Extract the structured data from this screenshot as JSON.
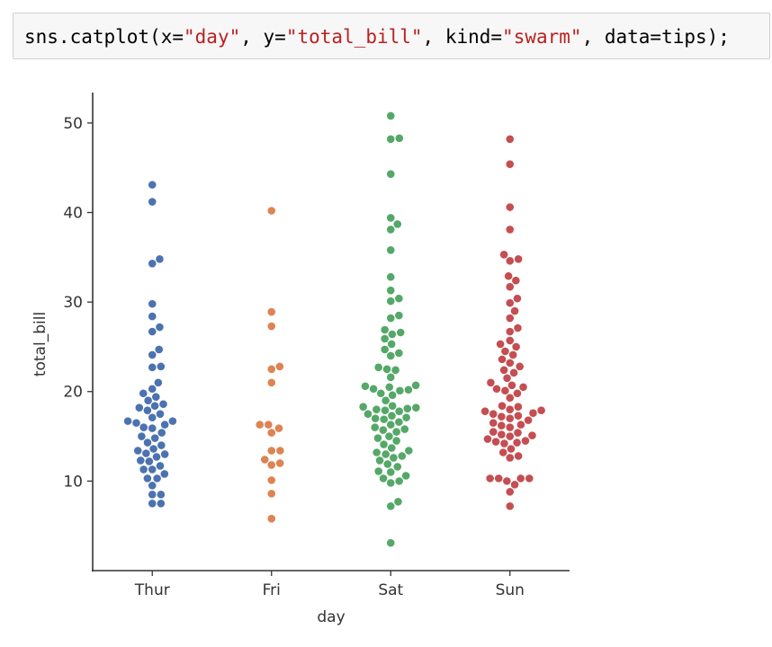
{
  "code_cell": {
    "tokens": [
      {
        "text": "sns.catplot(x=",
        "cls": ""
      },
      {
        "text": "\"day\"",
        "cls": "tok-str"
      },
      {
        "text": ", y=",
        "cls": ""
      },
      {
        "text": "\"total_bill\"",
        "cls": "tok-str"
      },
      {
        "text": ", kind=",
        "cls": ""
      },
      {
        "text": "\"swarm\"",
        "cls": "tok-str"
      },
      {
        "text": ", data=tips);",
        "cls": ""
      }
    ]
  },
  "chart_data": {
    "type": "scatter",
    "subtype": "swarm",
    "title": "",
    "xlabel": "day",
    "ylabel": "total_bill",
    "categories": [
      "Thur",
      "Fri",
      "Sat",
      "Sun"
    ],
    "ylim": [
      0,
      53.4
    ],
    "yticks": [
      10,
      20,
      30,
      40,
      50
    ],
    "grid": false,
    "legend": "none",
    "colors": [
      "#4c72b0",
      "#dd8452",
      "#55a868",
      "#c44e52"
    ],
    "series": [
      {
        "category": "Thur",
        "values": [
          7.5,
          7.5,
          8.5,
          8.5,
          9.5,
          10.3,
          10.3,
          10.8,
          11.3,
          11.3,
          11.7,
          12.2,
          12.3,
          12.7,
          13.0,
          13.1,
          13.4,
          13.6,
          14.0,
          14.3,
          14.8,
          15.0,
          15.4,
          15.9,
          16.0,
          16.3,
          16.5,
          16.7,
          16.7,
          17.1,
          17.5,
          17.9,
          18.2,
          18.4,
          18.6,
          19.0,
          19.4,
          19.8,
          20.3,
          21.0,
          22.7,
          22.8,
          24.1,
          24.7,
          26.7,
          27.2,
          28.4,
          29.8,
          34.3,
          34.8,
          41.2,
          43.1
        ]
      },
      {
        "category": "Fri",
        "values": [
          5.8,
          8.6,
          10.1,
          11.8,
          12.0,
          12.4,
          13.4,
          13.4,
          15.4,
          15.9,
          16.3,
          16.3,
          21.0,
          22.5,
          22.8,
          27.3,
          28.9,
          40.2
        ]
      },
      {
        "category": "Sat",
        "values": [
          3.1,
          7.2,
          7.7,
          9.8,
          10.0,
          10.3,
          10.6,
          11.0,
          11.1,
          11.6,
          11.9,
          12.3,
          12.6,
          12.8,
          13.0,
          13.2,
          13.4,
          13.7,
          14.1,
          14.5,
          14.8,
          15.0,
          15.5,
          15.7,
          15.8,
          16.0,
          16.3,
          16.6,
          16.9,
          17.0,
          17.1,
          17.3,
          17.5,
          17.8,
          17.9,
          18.0,
          18.1,
          18.2,
          18.3,
          18.4,
          19.0,
          19.6,
          19.8,
          20.1,
          20.2,
          20.3,
          20.5,
          20.6,
          20.7,
          21.6,
          22.4,
          22.5,
          22.7,
          24.0,
          24.3,
          24.7,
          25.3,
          25.9,
          26.4,
          26.6,
          26.9,
          28.2,
          28.5,
          30.1,
          30.4,
          31.3,
          32.8,
          35.8,
          38.1,
          38.7,
          39.4,
          44.3,
          48.2,
          48.3,
          50.8
        ]
      },
      {
        "category": "Sun",
        "values": [
          7.2,
          8.8,
          9.6,
          10.0,
          10.3,
          10.3,
          10.3,
          10.3,
          12.6,
          12.8,
          13.2,
          13.6,
          14.2,
          14.3,
          14.4,
          14.5,
          14.7,
          15.0,
          15.1,
          15.2,
          15.4,
          15.5,
          16.0,
          16.2,
          16.3,
          16.5,
          16.8,
          17.0,
          17.2,
          17.3,
          17.5,
          17.6,
          17.8,
          17.9,
          18.0,
          18.3,
          18.4,
          19.3,
          19.8,
          20.1,
          20.3,
          20.5,
          20.7,
          21.0,
          21.5,
          22.1,
          22.4,
          22.8,
          23.2,
          23.6,
          24.1,
          24.5,
          25.0,
          25.3,
          25.7,
          26.7,
          27.1,
          28.2,
          29.0,
          29.9,
          30.4,
          31.7,
          32.4,
          32.9,
          34.6,
          34.8,
          35.3,
          38.1,
          40.6,
          45.4,
          48.2
        ]
      }
    ]
  }
}
